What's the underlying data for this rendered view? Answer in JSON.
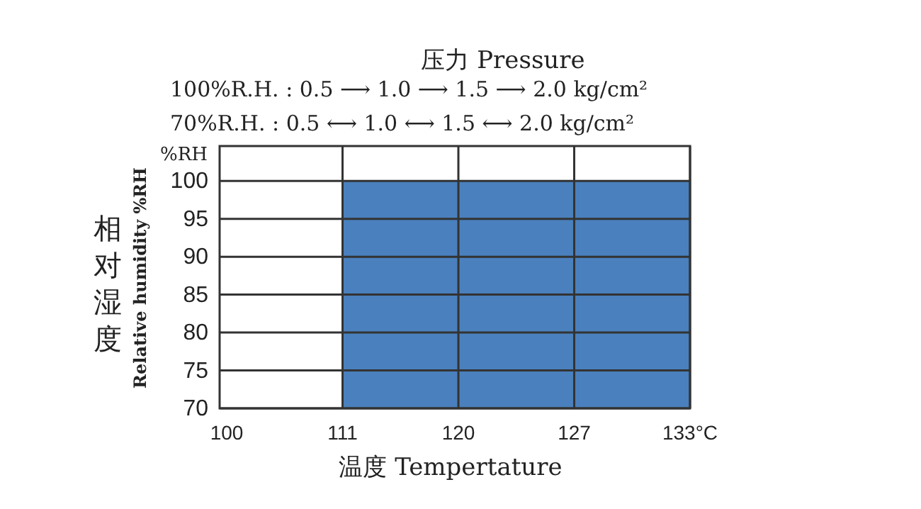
{
  "chart_data": {
    "type": "area",
    "title": "压力 Pressure",
    "xlabel": "温度 Tempertature",
    "ylabel": "Relative humidity %RH",
    "annotations": [
      "100%R.H. : 0.5 ⟶ 1.0 ⟶ 1.5  ⟶  2.0 kg/cm²",
      "70%R.H. : 0.5 ⟷ 1.0 ⟷ 1.5  ⟷  2.0 kg/cm²",
      "%RH",
      "相对湿度"
    ],
    "categories": [
      "100",
      "111",
      "120",
      "127",
      "133°C"
    ],
    "series": [
      {
        "color": "#4a80bd",
        "values": [
          null,
          100,
          100,
          100,
          100
        ]
      }
    ],
    "ylim": [
      70,
      104.6
    ],
    "yticks": [
      70,
      75,
      80,
      85,
      90,
      95,
      100
    ],
    "grid": true
  }
}
